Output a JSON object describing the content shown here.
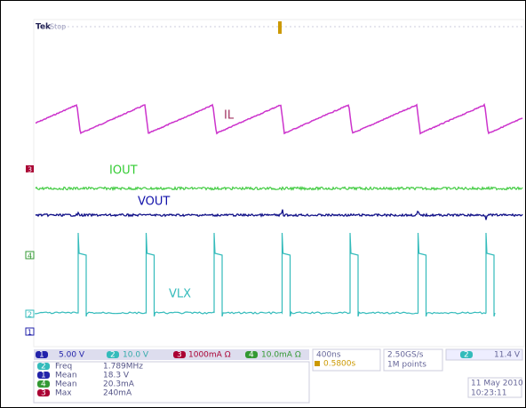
{
  "header": {
    "brand": "Tek",
    "status": "Stop"
  },
  "traces": [
    {
      "label": "IL"
    },
    {
      "label": "IOUT"
    },
    {
      "label": "VOUT"
    },
    {
      "label": "VLX"
    }
  ],
  "channel_markers": [
    "3",
    "4",
    "2",
    "1"
  ],
  "settings": [
    {
      "channel": "1",
      "scale": "5.00 V"
    },
    {
      "channel": "2",
      "scale": "10.0 V"
    },
    {
      "channel": "3",
      "scale": "1000mA Ω"
    },
    {
      "channel": "4",
      "scale": "10.0mA Ω"
    }
  ],
  "timebase": {
    "scale": "400ns",
    "position": "0.5800s",
    "sample_rate": "2.50GS/s",
    "record": "1M points"
  },
  "trigger": {
    "channel": "2",
    "level": "11.4 V"
  },
  "measurements": [
    {
      "channel": "2",
      "name": "Freq",
      "value": "1.789MHz"
    },
    {
      "channel": "1",
      "name": "Mean",
      "value": "18.3 V"
    },
    {
      "channel": "4",
      "name": "Mean",
      "value": "20.3mA"
    },
    {
      "channel": "3",
      "name": "Max",
      "value": "240mA"
    }
  ],
  "datetime": {
    "date": "11 May 2010",
    "time": "10:23:11"
  }
}
